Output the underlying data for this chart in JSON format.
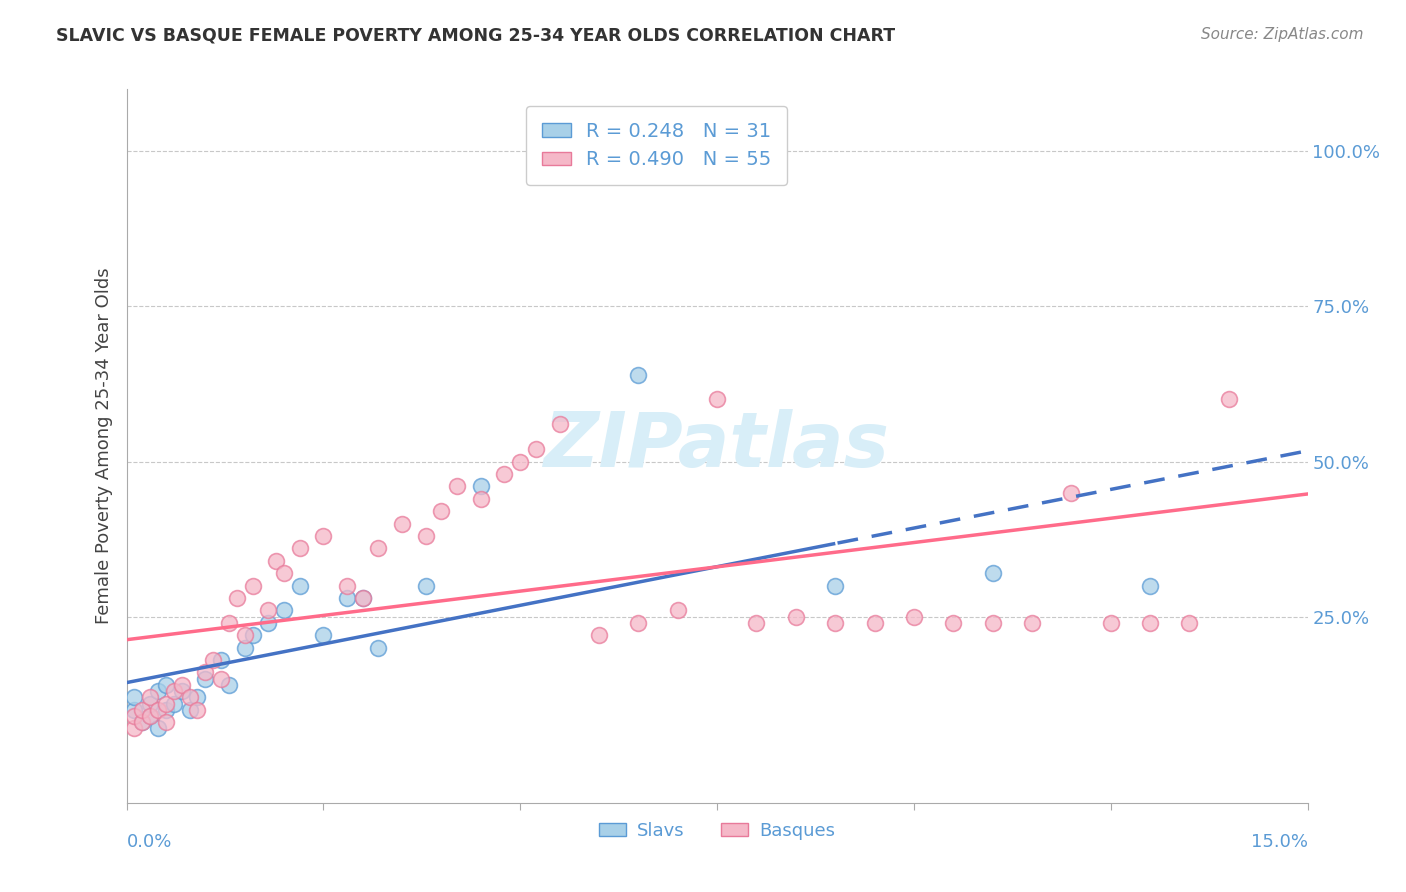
{
  "title": "SLAVIC VS BASQUE FEMALE POVERTY AMONG 25-34 YEAR OLDS CORRELATION CHART",
  "source": "Source: ZipAtlas.com",
  "ylabel": "Female Poverty Among 25-34 Year Olds",
  "slav_color": "#A8D0E8",
  "basq_color": "#F5B8C8",
  "slav_edge_color": "#5B9BD5",
  "basq_edge_color": "#E87A9A",
  "slav_line_color": "#4472C4",
  "basq_line_color": "#FF6B8A",
  "watermark_color": "#D8EEF8",
  "text_color": "#5B9BD5",
  "title_color": "#333333",
  "source_color": "#888888",
  "xlim": [
    0.0,
    0.15
  ],
  "ylim": [
    -0.05,
    1.1
  ],
  "R_slav": 0.248,
  "N_slav": 31,
  "R_basq": 0.49,
  "N_basq": 55,
  "slav_regression_solid_end": 0.09,
  "ytick_positions": [
    0.25,
    0.5,
    0.75,
    1.0
  ],
  "ytick_labels": [
    "25.0%",
    "50.0%",
    "75.0%",
    "100.0%"
  ],
  "xtick_positions": [
    0.025,
    0.05,
    0.075,
    0.1,
    0.125
  ],
  "slavs_x": [
    0.001,
    0.001,
    0.002,
    0.003,
    0.003,
    0.004,
    0.004,
    0.005,
    0.005,
    0.006,
    0.007,
    0.008,
    0.009,
    0.01,
    0.012,
    0.013,
    0.015,
    0.016,
    0.018,
    0.02,
    0.022,
    0.025,
    0.028,
    0.03,
    0.032,
    0.038,
    0.045,
    0.065,
    0.09,
    0.11,
    0.13
  ],
  "slavs_y": [
    0.1,
    0.12,
    0.08,
    0.09,
    0.11,
    0.07,
    0.13,
    0.1,
    0.14,
    0.11,
    0.13,
    0.1,
    0.12,
    0.15,
    0.18,
    0.14,
    0.2,
    0.22,
    0.24,
    0.26,
    0.3,
    0.22,
    0.28,
    0.28,
    0.2,
    0.3,
    0.46,
    0.64,
    0.3,
    0.32,
    0.3
  ],
  "basqs_x": [
    0.001,
    0.001,
    0.002,
    0.002,
    0.003,
    0.003,
    0.004,
    0.005,
    0.005,
    0.006,
    0.007,
    0.008,
    0.009,
    0.01,
    0.011,
    0.012,
    0.013,
    0.014,
    0.015,
    0.016,
    0.018,
    0.019,
    0.02,
    0.022,
    0.025,
    0.028,
    0.03,
    0.032,
    0.035,
    0.038,
    0.04,
    0.042,
    0.045,
    0.048,
    0.05,
    0.052,
    0.055,
    0.06,
    0.065,
    0.07,
    0.075,
    0.08,
    0.085,
    0.09,
    0.095,
    0.1,
    0.105,
    0.11,
    0.115,
    0.12,
    0.125,
    0.13,
    0.135,
    0.14,
    0.073
  ],
  "basqs_y": [
    0.07,
    0.09,
    0.08,
    0.1,
    0.09,
    0.12,
    0.1,
    0.08,
    0.11,
    0.13,
    0.14,
    0.12,
    0.1,
    0.16,
    0.18,
    0.15,
    0.24,
    0.28,
    0.22,
    0.3,
    0.26,
    0.34,
    0.32,
    0.36,
    0.38,
    0.3,
    0.28,
    0.36,
    0.4,
    0.38,
    0.42,
    0.46,
    0.44,
    0.48,
    0.5,
    0.52,
    0.56,
    0.22,
    0.24,
    0.26,
    0.6,
    0.24,
    0.25,
    0.24,
    0.24,
    0.25,
    0.24,
    0.24,
    0.24,
    0.45,
    0.24,
    0.24,
    0.24,
    0.6,
    1.0
  ]
}
